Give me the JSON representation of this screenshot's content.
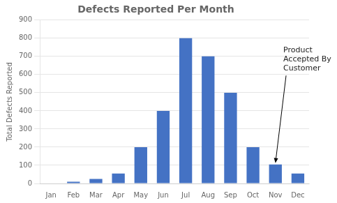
{
  "chart_data": {
    "type": "bar",
    "title": "Defects Reported Per Month",
    "y_label": "Total Defects Reported",
    "categories": [
      "Jan",
      "Feb",
      "Mar",
      "Apr",
      "May",
      "Jun",
      "Jul",
      "Aug",
      "Sep",
      "Oct",
      "Nov",
      "Dec"
    ],
    "values": [
      0,
      10,
      25,
      55,
      200,
      400,
      800,
      700,
      500,
      200,
      105,
      55
    ],
    "color": "#4472C4",
    "ylim": [
      0,
      900
    ],
    "yticks": [
      0,
      100,
      200,
      300,
      400,
      500,
      600,
      700,
      800,
      900
    ],
    "grid": true,
    "annotations": [
      {
        "text": "Product\nAccepted By\nCustomer",
        "x": "Nov",
        "y": 105
      }
    ]
  }
}
